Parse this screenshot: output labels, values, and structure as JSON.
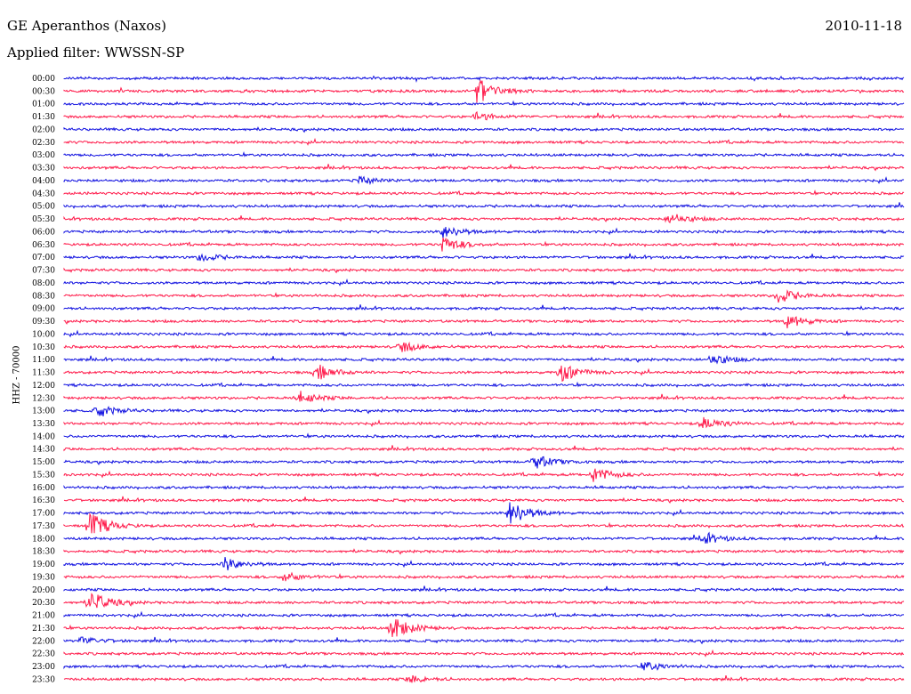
{
  "header": {
    "station": "GE Aperanthos (Naxos)",
    "date": "2010-11-18",
    "filter": "Applied filter: WWSSN-SP",
    "channel": "HHZ - 70000"
  },
  "colors": {
    "trace_a": "#1010e0",
    "trace_b": "#ff1a4a",
    "background": "#ffffff"
  },
  "chart_data": {
    "type": "line",
    "title": "GE Aperanthos (Naxos)",
    "subtitle": "Applied filter: WWSSN-SP",
    "ylabel": "HHZ - 70000",
    "xlabel": "",
    "rows": [
      "00:00",
      "00:30",
      "01:00",
      "01:30",
      "02:00",
      "02:30",
      "03:00",
      "03:30",
      "04:00",
      "04:30",
      "05:00",
      "05:30",
      "06:00",
      "06:30",
      "07:00",
      "07:30",
      "08:00",
      "08:30",
      "09:00",
      "09:30",
      "10:00",
      "10:30",
      "11:00",
      "11:30",
      "12:00",
      "12:30",
      "13:00",
      "13:30",
      "14:00",
      "14:30",
      "15:00",
      "15:30",
      "16:00",
      "16:30",
      "17:00",
      "17:30",
      "18:00",
      "18:30",
      "19:00",
      "19:30",
      "20:00",
      "20:30",
      "21:00",
      "21:30",
      "22:00",
      "22:30",
      "23:00",
      "23:30"
    ],
    "events": [
      {
        "row": "00:30",
        "t": 0.49,
        "amp": 1.0
      },
      {
        "row": "01:30",
        "t": 0.49,
        "amp": 0.3
      },
      {
        "row": "04:00",
        "t": 0.35,
        "amp": 0.3
      },
      {
        "row": "05:30",
        "t": 0.72,
        "amp": 0.45
      },
      {
        "row": "06:00",
        "t": 0.45,
        "amp": 0.5
      },
      {
        "row": "06:30",
        "t": 0.45,
        "amp": 0.6
      },
      {
        "row": "07:00",
        "t": 0.16,
        "amp": 0.35
      },
      {
        "row": "08:30",
        "t": 0.85,
        "amp": 0.55
      },
      {
        "row": "09:30",
        "t": 0.86,
        "amp": 0.5
      },
      {
        "row": "10:30",
        "t": 0.4,
        "amp": 0.4
      },
      {
        "row": "11:00",
        "t": 0.77,
        "amp": 0.45
      },
      {
        "row": "11:30",
        "t": 0.3,
        "amp": 0.6
      },
      {
        "row": "11:30",
        "t": 0.59,
        "amp": 0.7
      },
      {
        "row": "12:30",
        "t": 0.28,
        "amp": 0.45
      },
      {
        "row": "13:00",
        "t": 0.04,
        "amp": 0.4
      },
      {
        "row": "13:30",
        "t": 0.76,
        "amp": 0.45
      },
      {
        "row": "15:00",
        "t": 0.56,
        "amp": 0.5
      },
      {
        "row": "15:30",
        "t": 0.63,
        "amp": 0.55
      },
      {
        "row": "17:00",
        "t": 0.53,
        "amp": 1.0
      },
      {
        "row": "17:30",
        "t": 0.03,
        "amp": 1.0
      },
      {
        "row": "18:00",
        "t": 0.76,
        "amp": 0.4
      },
      {
        "row": "19:00",
        "t": 0.19,
        "amp": 0.5
      },
      {
        "row": "19:30",
        "t": 0.26,
        "amp": 0.35
      },
      {
        "row": "20:30",
        "t": 0.03,
        "amp": 0.85
      },
      {
        "row": "21:30",
        "t": 0.39,
        "amp": 0.9
      },
      {
        "row": "22:00",
        "t": 0.02,
        "amp": 0.3
      },
      {
        "row": "23:00",
        "t": 0.69,
        "amp": 0.35
      },
      {
        "row": "23:30",
        "t": 0.41,
        "amp": 0.3
      }
    ]
  }
}
